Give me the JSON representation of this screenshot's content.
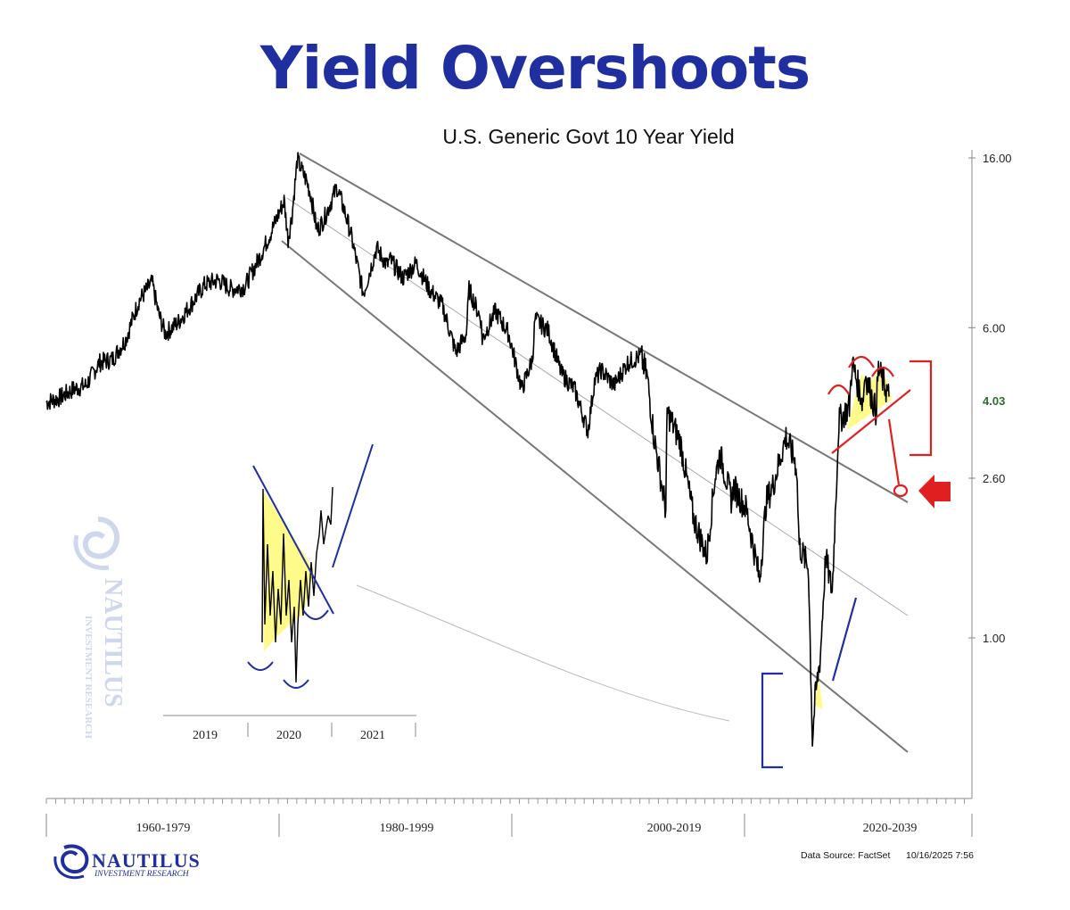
{
  "title": "Yield Overshoots",
  "subtitle": "U.S.  Generic Govt 10 Year Yield",
  "colors": {
    "title": "#1f2fa0",
    "price": "#000000",
    "trendline": "#777777",
    "annotation_red": "#e02020",
    "annotation_blue": "#1f2fa0",
    "highlight_fill": "#fffb8a",
    "last_value": "#2f6b2f"
  },
  "chart_data": [
    {
      "type": "line",
      "title": "U.S.  Generic Govt 10 Year Yield",
      "scale": "log",
      "y_ticks": [
        "16.00",
        "6.00",
        "1.00"
      ],
      "y_tick_values": [
        16,
        6,
        1
      ],
      "y_mid_tick": {
        "label": "2.60",
        "value": 2.6
      },
      "last_value": {
        "label": "4.03",
        "value": 4.03
      },
      "ylim": [
        0.5,
        16
      ],
      "xlim": [
        1962,
        2032
      ],
      "x_category_labels": [
        "1960-1979",
        "1980-1999",
        "2000-2019",
        "2020-2039"
      ],
      "series": [
        {
          "x": [
            1962,
            1963,
            1964,
            1965,
            1966,
            1967,
            1968,
            1969,
            1970,
            1970.5,
            1971,
            1972,
            1973,
            1974,
            1975,
            1976,
            1977,
            1978,
            1979,
            1980,
            1980.3,
            1980.6,
            1981,
            1981.7,
            1982,
            1982.5,
            1983,
            1984,
            1984.5,
            1985,
            1986,
            1987,
            1987.8,
            1988,
            1989,
            1990,
            1991,
            1992,
            1993,
            1993.8,
            1994,
            1994.9,
            1995,
            1996,
            1997,
            1998,
            1998.8,
            1999,
            2000,
            2001,
            2002,
            2003,
            2003.5,
            2004,
            2005,
            2006,
            2007,
            2007.5,
            2008,
            2008.9,
            2009,
            2010,
            2011,
            2012,
            2012.6,
            2013,
            2013.9,
            2014,
            2015,
            2016,
            2016.5,
            2017,
            2018,
            2018.8,
            2019,
            2019.7,
            2020,
            2020.2,
            2020.6,
            2021,
            2021.5,
            2022,
            2022.8,
            2023,
            2023.8,
            2024,
            2024.8,
            2025,
            2025.8
          ],
          "values": [
            3.9,
            4.0,
            4.2,
            4.3,
            4.9,
            5.0,
            5.6,
            7.0,
            7.8,
            6.5,
            5.8,
            6.2,
            6.9,
            7.7,
            7.9,
            7.5,
            7.6,
            8.8,
            10.4,
            12.5,
            10.0,
            11.5,
            15.8,
            14.0,
            13.0,
            10.5,
            11.2,
            13.5,
            12.0,
            10.5,
            7.3,
            9.5,
            8.6,
            8.9,
            8.0,
            8.7,
            7.5,
            6.8,
            5.2,
            5.8,
            7.5,
            6.3,
            5.6,
            6.6,
            5.8,
            4.2,
            5.0,
            6.3,
            5.9,
            4.6,
            4.2,
            3.3,
            4.4,
            4.7,
            4.3,
            4.9,
            5.1,
            4.5,
            3.2,
            2.1,
            3.7,
            3.1,
            2.0,
            1.6,
            2.5,
            2.9,
            2.2,
            2.4,
            2.1,
            1.4,
            2.2,
            2.4,
            3.2,
            2.7,
            1.7,
            1.5,
            0.55,
            0.7,
            0.9,
            1.6,
            1.3,
            3.5,
            3.8,
            4.9,
            3.9,
            4.6,
            3.7,
            4.7,
            4.03
          ]
        }
      ]
    },
    {
      "type": "line",
      "inset": true,
      "x_category_labels": [
        "2019",
        "2020",
        "2021"
      ]
    }
  ],
  "footer": {
    "source": "Data Source: FactSet",
    "timestamp": "10/16/2025 7:56",
    "brand_name": "NAUTILUS",
    "brand_tagline": "INVESTMENT RESEARCH"
  },
  "watermark": {
    "name": "NAUTILUS",
    "tagline": "INVESTMENT RESEARCH"
  },
  "icons": [
    "nautilus-logo-icon",
    "red-arrow-icon"
  ]
}
